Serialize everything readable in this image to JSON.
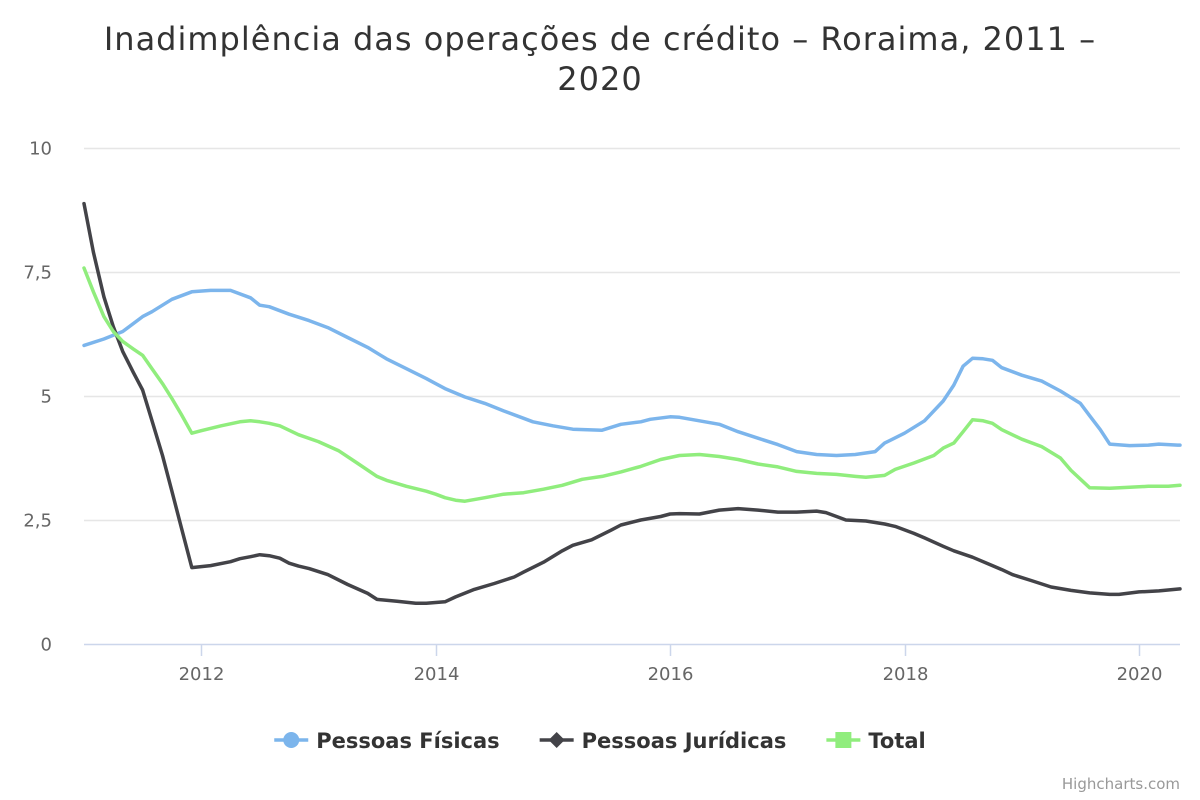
{
  "chart_data": {
    "type": "line",
    "title_line1": "Inadimplência das operações de crédito – Roraima, 2011 –",
    "title_line2": "2020",
    "xlabel": "",
    "ylabel": "",
    "xlim": [
      2011.0,
      2020.35
    ],
    "ylim": [
      0,
      10
    ],
    "x_ticks": [
      {
        "value": 2012,
        "label": "2012"
      },
      {
        "value": 2014,
        "label": "2014"
      },
      {
        "value": 2016,
        "label": "2016"
      },
      {
        "value": 2018,
        "label": "2018"
      },
      {
        "value": 2020,
        "label": "2020"
      }
    ],
    "y_ticks": [
      {
        "value": 0,
        "label": "0"
      },
      {
        "value": 2.5,
        "label": "2,5"
      },
      {
        "value": 5,
        "label": "5"
      },
      {
        "value": 7.5,
        "label": "7,5"
      },
      {
        "value": 10,
        "label": "10"
      }
    ],
    "grid": true,
    "legend_position": "bottom-center",
    "credits": "Highcharts.com",
    "series": [
      {
        "name": "Pessoas Físicas",
        "color": "#7cb5ec",
        "marker": "circle",
        "points": [
          [
            2011.0,
            6.02
          ],
          [
            2011.17,
            6.15
          ],
          [
            2011.33,
            6.3
          ],
          [
            2011.5,
            6.6
          ],
          [
            2011.58,
            6.7
          ],
          [
            2011.75,
            6.95
          ],
          [
            2011.92,
            7.1
          ],
          [
            2012.08,
            7.13
          ],
          [
            2012.25,
            7.13
          ],
          [
            2012.42,
            6.98
          ],
          [
            2012.5,
            6.83
          ],
          [
            2012.58,
            6.8
          ],
          [
            2012.75,
            6.65
          ],
          [
            2012.92,
            6.52
          ],
          [
            2013.08,
            6.38
          ],
          [
            2013.25,
            6.18
          ],
          [
            2013.42,
            5.98
          ],
          [
            2013.58,
            5.75
          ],
          [
            2013.75,
            5.55
          ],
          [
            2013.92,
            5.35
          ],
          [
            2014.08,
            5.15
          ],
          [
            2014.25,
            4.98
          ],
          [
            2014.42,
            4.85
          ],
          [
            2014.58,
            4.7
          ],
          [
            2014.75,
            4.55
          ],
          [
            2014.83,
            4.48
          ],
          [
            2015.0,
            4.4
          ],
          [
            2015.17,
            4.33
          ],
          [
            2015.42,
            4.31
          ],
          [
            2015.58,
            4.43
          ],
          [
            2015.75,
            4.48
          ],
          [
            2015.83,
            4.53
          ],
          [
            2016.0,
            4.58
          ],
          [
            2016.08,
            4.57
          ],
          [
            2016.25,
            4.5
          ],
          [
            2016.42,
            4.43
          ],
          [
            2016.58,
            4.28
          ],
          [
            2016.75,
            4.15
          ],
          [
            2016.92,
            4.02
          ],
          [
            2017.08,
            3.88
          ],
          [
            2017.25,
            3.82
          ],
          [
            2017.42,
            3.8
          ],
          [
            2017.58,
            3.82
          ],
          [
            2017.75,
            3.88
          ],
          [
            2017.83,
            4.05
          ],
          [
            2018.0,
            4.25
          ],
          [
            2018.17,
            4.5
          ],
          [
            2018.33,
            4.9
          ],
          [
            2018.42,
            5.22
          ],
          [
            2018.5,
            5.6
          ],
          [
            2018.58,
            5.76
          ],
          [
            2018.67,
            5.75
          ],
          [
            2018.75,
            5.72
          ],
          [
            2018.83,
            5.57
          ],
          [
            2019.0,
            5.42
          ],
          [
            2019.17,
            5.3
          ],
          [
            2019.33,
            5.1
          ],
          [
            2019.5,
            4.85
          ],
          [
            2019.58,
            4.6
          ],
          [
            2019.67,
            4.32
          ],
          [
            2019.75,
            4.03
          ],
          [
            2019.92,
            4.0
          ],
          [
            2020.08,
            4.01
          ],
          [
            2020.17,
            4.03
          ],
          [
            2020.33,
            4.01
          ],
          [
            2020.35,
            4.01
          ]
        ]
      },
      {
        "name": "Pessoas Jurídicas",
        "color": "#434348",
        "marker": "diamond",
        "points": [
          [
            2011.0,
            8.88
          ],
          [
            2011.08,
            7.9
          ],
          [
            2011.17,
            7.0
          ],
          [
            2011.25,
            6.4
          ],
          [
            2011.33,
            5.9
          ],
          [
            2011.42,
            5.48
          ],
          [
            2011.5,
            5.12
          ],
          [
            2011.58,
            4.5
          ],
          [
            2011.67,
            3.8
          ],
          [
            2011.75,
            3.08
          ],
          [
            2011.83,
            2.35
          ],
          [
            2011.92,
            1.54
          ],
          [
            2012.08,
            1.58
          ],
          [
            2012.25,
            1.66
          ],
          [
            2012.33,
            1.72
          ],
          [
            2012.42,
            1.76
          ],
          [
            2012.5,
            1.8
          ],
          [
            2012.58,
            1.78
          ],
          [
            2012.67,
            1.73
          ],
          [
            2012.75,
            1.63
          ],
          [
            2012.83,
            1.57
          ],
          [
            2012.92,
            1.52
          ],
          [
            2013.08,
            1.4
          ],
          [
            2013.25,
            1.2
          ],
          [
            2013.42,
            1.02
          ],
          [
            2013.5,
            0.9
          ],
          [
            2013.67,
            0.86
          ],
          [
            2013.83,
            0.82
          ],
          [
            2013.92,
            0.82
          ],
          [
            2014.08,
            0.85
          ],
          [
            2014.17,
            0.95
          ],
          [
            2014.33,
            1.1
          ],
          [
            2014.5,
            1.22
          ],
          [
            2014.67,
            1.35
          ],
          [
            2014.75,
            1.45
          ],
          [
            2014.92,
            1.65
          ],
          [
            2015.08,
            1.88
          ],
          [
            2015.17,
            1.99
          ],
          [
            2015.33,
            2.1
          ],
          [
            2015.5,
            2.3
          ],
          [
            2015.58,
            2.4
          ],
          [
            2015.75,
            2.5
          ],
          [
            2015.92,
            2.57
          ],
          [
            2016.0,
            2.62
          ],
          [
            2016.08,
            2.63
          ],
          [
            2016.25,
            2.62
          ],
          [
            2016.42,
            2.7
          ],
          [
            2016.58,
            2.73
          ],
          [
            2016.75,
            2.7
          ],
          [
            2016.92,
            2.66
          ],
          [
            2017.08,
            2.66
          ],
          [
            2017.25,
            2.68
          ],
          [
            2017.33,
            2.65
          ],
          [
            2017.42,
            2.57
          ],
          [
            2017.5,
            2.5
          ],
          [
            2017.67,
            2.48
          ],
          [
            2017.83,
            2.42
          ],
          [
            2017.92,
            2.37
          ],
          [
            2018.08,
            2.23
          ],
          [
            2018.17,
            2.14
          ],
          [
            2018.33,
            1.97
          ],
          [
            2018.42,
            1.88
          ],
          [
            2018.58,
            1.75
          ],
          [
            2018.75,
            1.58
          ],
          [
            2018.83,
            1.5
          ],
          [
            2018.92,
            1.4
          ],
          [
            2019.08,
            1.28
          ],
          [
            2019.25,
            1.15
          ],
          [
            2019.42,
            1.08
          ],
          [
            2019.58,
            1.03
          ],
          [
            2019.75,
            1.0
          ],
          [
            2019.83,
            1.0
          ],
          [
            2020.0,
            1.05
          ],
          [
            2020.17,
            1.07
          ],
          [
            2020.35,
            1.11
          ]
        ]
      },
      {
        "name": "Total",
        "color": "#90ed7d",
        "marker": "square",
        "points": [
          [
            2011.0,
            7.58
          ],
          [
            2011.08,
            7.1
          ],
          [
            2011.17,
            6.6
          ],
          [
            2011.25,
            6.3
          ],
          [
            2011.33,
            6.1
          ],
          [
            2011.42,
            5.95
          ],
          [
            2011.5,
            5.82
          ],
          [
            2011.58,
            5.55
          ],
          [
            2011.67,
            5.25
          ],
          [
            2011.75,
            4.95
          ],
          [
            2011.83,
            4.63
          ],
          [
            2011.92,
            4.25
          ],
          [
            2012.0,
            4.3
          ],
          [
            2012.17,
            4.4
          ],
          [
            2012.33,
            4.48
          ],
          [
            2012.42,
            4.5
          ],
          [
            2012.5,
            4.48
          ],
          [
            2012.58,
            4.45
          ],
          [
            2012.67,
            4.4
          ],
          [
            2012.83,
            4.22
          ],
          [
            2013.0,
            4.08
          ],
          [
            2013.17,
            3.9
          ],
          [
            2013.33,
            3.65
          ],
          [
            2013.5,
            3.38
          ],
          [
            2013.58,
            3.3
          ],
          [
            2013.75,
            3.18
          ],
          [
            2013.92,
            3.08
          ],
          [
            2014.0,
            3.02
          ],
          [
            2014.08,
            2.95
          ],
          [
            2014.17,
            2.9
          ],
          [
            2014.25,
            2.88
          ],
          [
            2014.42,
            2.95
          ],
          [
            2014.58,
            3.02
          ],
          [
            2014.75,
            3.05
          ],
          [
            2014.92,
            3.12
          ],
          [
            2015.08,
            3.2
          ],
          [
            2015.25,
            3.32
          ],
          [
            2015.42,
            3.38
          ],
          [
            2015.58,
            3.47
          ],
          [
            2015.75,
            3.58
          ],
          [
            2015.92,
            3.72
          ],
          [
            2016.08,
            3.8
          ],
          [
            2016.25,
            3.82
          ],
          [
            2016.42,
            3.78
          ],
          [
            2016.58,
            3.72
          ],
          [
            2016.75,
            3.63
          ],
          [
            2016.92,
            3.57
          ],
          [
            2017.08,
            3.48
          ],
          [
            2017.25,
            3.44
          ],
          [
            2017.42,
            3.42
          ],
          [
            2017.58,
            3.38
          ],
          [
            2017.67,
            3.36
          ],
          [
            2017.83,
            3.4
          ],
          [
            2017.92,
            3.52
          ],
          [
            2018.08,
            3.65
          ],
          [
            2018.25,
            3.8
          ],
          [
            2018.33,
            3.95
          ],
          [
            2018.42,
            4.05
          ],
          [
            2018.5,
            4.28
          ],
          [
            2018.58,
            4.52
          ],
          [
            2018.67,
            4.5
          ],
          [
            2018.75,
            4.45
          ],
          [
            2018.83,
            4.32
          ],
          [
            2019.0,
            4.13
          ],
          [
            2019.17,
            3.98
          ],
          [
            2019.33,
            3.75
          ],
          [
            2019.42,
            3.5
          ],
          [
            2019.58,
            3.15
          ],
          [
            2019.75,
            3.14
          ],
          [
            2019.92,
            3.16
          ],
          [
            2020.08,
            3.18
          ],
          [
            2020.25,
            3.18
          ],
          [
            2020.35,
            3.2
          ]
        ]
      }
    ]
  }
}
